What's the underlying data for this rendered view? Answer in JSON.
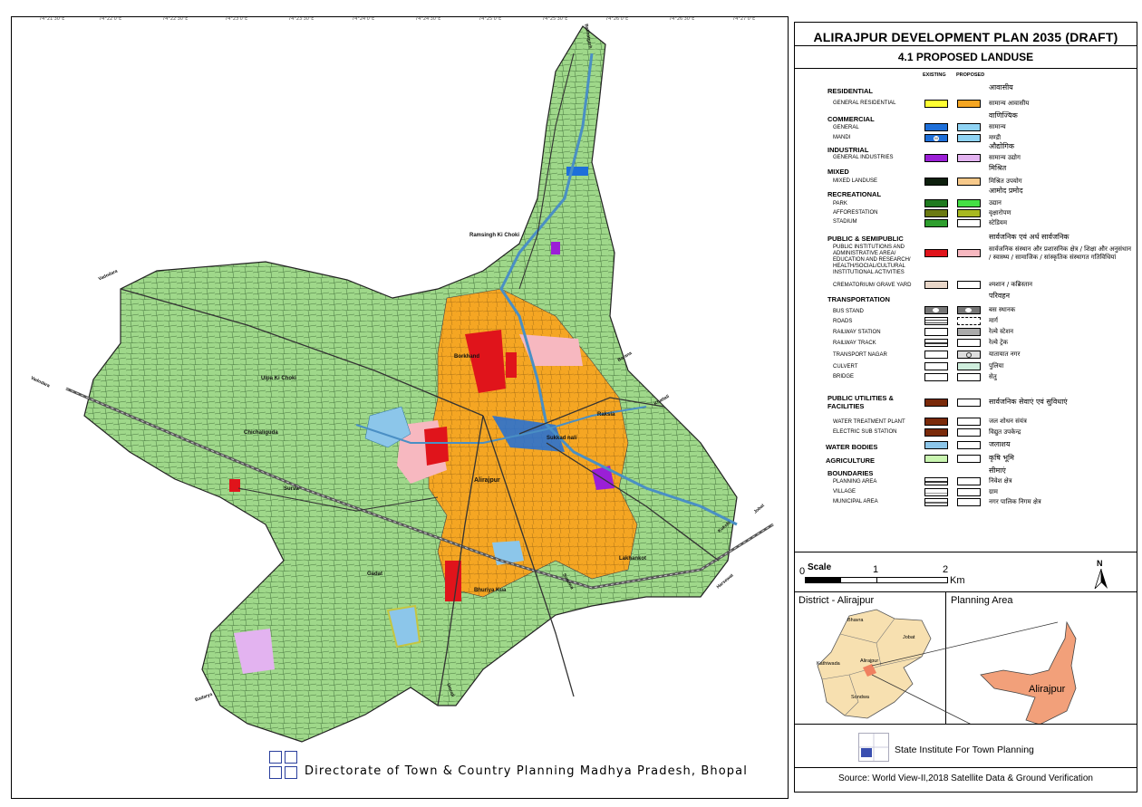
{
  "map": {
    "place_labels": [
      {
        "name": "Ramsingh Ki Choki"
      },
      {
        "name": "Borkhand"
      },
      {
        "name": "Ulpa Ki Choki"
      },
      {
        "name": "Chichaliguda"
      },
      {
        "name": "Raksia"
      },
      {
        "name": "Sukkad nali"
      },
      {
        "name": "Alirajpur"
      },
      {
        "name": "Lakhankot"
      },
      {
        "name": "Bhuriya Kua"
      },
      {
        "name": "Gadat"
      },
      {
        "name": "Surva"
      }
    ],
    "road_destinations": [
      "Vadodara",
      "Vadodara",
      "Barana",
      "Khattali",
      "Jobat",
      "Kukshi",
      "Harsewat",
      "Umrali",
      "Badarya",
      "Sondwa",
      "Bakhatgarh"
    ]
  },
  "legend": {
    "title": "ALIRAJPUR DEVELOPMENT PLAN 2035 (DRAFT)",
    "subtitle": "4.1 PROPOSED LANDUSE",
    "col_existing": "EXISTING",
    "col_proposed": "PROPOSED",
    "categories": [
      {
        "cat": "RESIDENTIAL",
        "cat_hi": "आवासीय",
        "items": [
          {
            "label": "GENERAL RESIDENTIAL",
            "hi": "सामान्य आवासीय",
            "existing": "#ffff33",
            "proposed": "#f5a623"
          }
        ]
      },
      {
        "cat": "COMMERCIAL",
        "cat_hi": "वाणिज्यिक",
        "items": [
          {
            "label": "GENERAL",
            "hi": "सामान्य",
            "existing": "#1e6fd9",
            "proposed": "#8fd3f4"
          },
          {
            "label": "MANDI",
            "hi": "मण्डी",
            "existing": "#1e6fd9",
            "proposed": "#8fd3f4",
            "marker": "M"
          }
        ]
      },
      {
        "cat": "INDUSTRIAL",
        "cat_hi": "औद्योगिक",
        "items": [
          {
            "label": "GENERAL INDUSTRIES",
            "hi": "सामान्य उद्योग",
            "existing": "#9b1fd6",
            "proposed": "#e3b3f0"
          }
        ]
      },
      {
        "cat": "MIXED",
        "cat_hi": "मिश्रित",
        "items": [
          {
            "label": "MIXED LANDUSE",
            "hi": "मिश्रित उपयोग",
            "existing": "#0d1f0d",
            "proposed": "#f7c98a"
          }
        ]
      },
      {
        "cat": "RECREATIONAL",
        "cat_hi": "आमोद प्रमोद",
        "items": [
          {
            "label": "PARK",
            "hi": "उद्यान",
            "existing": "#1f7a1f",
            "proposed": "#44e044"
          },
          {
            "label": "AFFORESTATION",
            "hi": "वृक्षारोपण",
            "existing": "#6b7a12",
            "proposed": "#a7b820"
          },
          {
            "label": "STADIUM",
            "hi": "स्टेडियम",
            "existing": "#2e9e2e",
            "proposed": "#ffffff"
          }
        ]
      },
      {
        "cat": "PUBLIC & SEMIPUBLIC",
        "cat_hi": "सार्वजनिक एवं अर्ध सार्वजनिक",
        "items": [
          {
            "label": "PUBLIC INSTITUTIONS AND ADMINISTRATIVE AREA/ EDUCATION AND RESEARCH/ HEALTH/SOCIAL/CULTURAL INSTITUTIONAL ACTIVITIES",
            "hi": "सार्वजनिक संस्थान और प्रशासनिक क्षेत्र / शिक्षा और अनुसंधान / स्वास्थ्य / सामाजिक / सांस्कृतिक संस्थागत गतिविधियां",
            "existing": "#e0141b",
            "proposed": "#f7b8c0"
          },
          {
            "label": "CREMATORIUM/ GRAVE YARD",
            "hi": "श्मशान / कब्रिस्तान",
            "existing": "#e8d6c8",
            "proposed": "#ffffff"
          }
        ]
      },
      {
        "cat": "TRANSPORTATION",
        "cat_hi": "परिवहन",
        "items": [
          {
            "label": "BUS STAND",
            "hi": "बस स्थानक",
            "existing": "#777777",
            "proposed": "#777777"
          },
          {
            "label": "ROADS",
            "hi": "मार्ग",
            "existing": "#ffffff",
            "proposed": "#ffffff"
          },
          {
            "label": "RAILWAY STATION",
            "hi": "रेल्वे स्टेशन",
            "existing": "#ffffff",
            "proposed": "#aaaaaa"
          },
          {
            "label": "RAILWAY TRACK",
            "hi": "रेल्वे ट्रेक",
            "existing": "#ffffff",
            "proposed": "#ffffff"
          },
          {
            "label": "TRANSPORT NAGAR",
            "hi": "यातायात नगर",
            "existing": "#ffffff",
            "proposed": "#dddddd"
          },
          {
            "label": "CULVERT",
            "hi": "पुलिया",
            "existing": "#ffffff",
            "proposed": "#cfeedd"
          },
          {
            "label": "BRIDGE",
            "hi": "सेतु",
            "existing": "#ffffff",
            "proposed": "#ffffff"
          }
        ]
      },
      {
        "cat": "PUBLIC UTILITIES & FACILITIES",
        "cat_hi": "सार्वजनिक सेवाएं एवं सुविधाएं",
        "items": [
          {
            "label": "WATER TREATMENT PLANT",
            "hi": "जल शोधन संयंत्र",
            "existing": "#7a2a0a",
            "proposed": "#ffffff"
          },
          {
            "label": "ELECTRIC SUB STATION",
            "hi": "विद्युत उपकेन्द्र",
            "existing": "#7a2a0a",
            "proposed": "#ffffff"
          }
        ]
      },
      {
        "cat": "WATER BODIES",
        "cat_hi": "जलाशय",
        "items": [],
        "existing": "#8cc6ea",
        "proposed": "#ffffff"
      },
      {
        "cat": "AGRICULTURE",
        "cat_hi": "कृषि भूमि",
        "items": [],
        "existing": "#c9f5b0",
        "proposed": "#ffffff"
      },
      {
        "cat": "BOUNDARIES",
        "cat_hi": "सीमाएं",
        "items": [
          {
            "label": "PLANNING AREA",
            "hi": "निवेश क्षेत्र",
            "existing": "#ffffff",
            "proposed": "#ffffff"
          },
          {
            "label": "VILLAGE",
            "hi": "ग्राम",
            "existing": "#ffffff",
            "proposed": "#ffffff"
          },
          {
            "label": "MUNICIPAL AREA",
            "hi": "नगर पालिक निगम क्षेत्र",
            "existing": "#ffffff",
            "proposed": "#ffffff"
          }
        ]
      }
    ]
  },
  "scale": {
    "label": "Scale",
    "ticks": [
      "0",
      "1",
      "2"
    ],
    "unit": "Km",
    "north": "N"
  },
  "inset": {
    "district_title": "District - Alirajpur",
    "planning_title": "Planning Area",
    "tehsils": [
      "Bhavra",
      "Jobat",
      "Kathiwada",
      "Alirajpur",
      "Sondwa"
    ],
    "planning_label": "Alirajpur"
  },
  "institute": "State Institute For Town Planning",
  "source": "Source: World View-II,2018 Satellite Data & Ground Verification",
  "footer_org": "Directorate of Town & Country Planning Madhya Pradesh, Bhopal",
  "colors": {
    "agri": "#9fd88a",
    "residential": "#f5a623",
    "public": "#e0141b",
    "water": "#8cc6ea",
    "boundary": "#222222"
  }
}
